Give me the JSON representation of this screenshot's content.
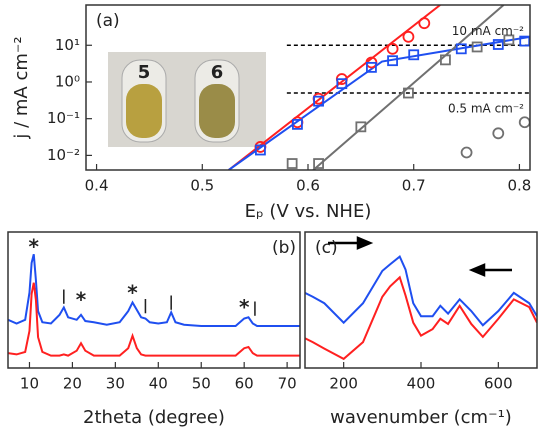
{
  "chart_data": [
    {
      "type": "line",
      "label": "(a)",
      "xlabel": "Eₚ (V vs. NHE)",
      "ylabel": "j / mA cm⁻²",
      "log_y": true,
      "xlim": [
        0.39,
        0.81
      ],
      "ylim": [
        0.004,
        125
      ],
      "xticks": [
        0.4,
        0.5,
        0.6,
        0.7,
        0.8
      ],
      "yticks": [
        {
          "value": 0.01,
          "label": "10⁻²"
        },
        {
          "value": 0.1,
          "label": "10⁻¹"
        },
        {
          "value": 1,
          "label": "10⁰"
        },
        {
          "value": 10,
          "label": "10¹"
        }
      ],
      "hlines": [
        {
          "value": 10,
          "xmin": 0.58,
          "label": "10 mA cm⁻²"
        },
        {
          "value": 0.5,
          "xmin": 0.58,
          "label": "0.5 mA cm⁻²"
        }
      ],
      "inset_labels": [
        "5",
        "6"
      ],
      "series": [
        {
          "color": "#ff2020",
          "line": true,
          "x": [
            0.525,
            0.725
          ],
          "values": [
            0.004,
            125
          ]
        },
        {
          "color": "#1f4ff0",
          "line": true,
          "x": [
            0.525,
            0.67,
            0.81
          ],
          "values": [
            0.004,
            3.6,
            17
          ]
        },
        {
          "color": "#707070",
          "line": true,
          "x": [
            0.605,
            0.785
          ],
          "values": [
            0.004,
            125
          ]
        },
        {
          "color": "#ff2020",
          "marker": "circle",
          "x": [
            0.555,
            0.59,
            0.61,
            0.632,
            0.66,
            0.68,
            0.695,
            0.71
          ],
          "values": [
            0.017,
            0.08,
            0.35,
            1.2,
            3.4,
            8,
            17,
            40
          ]
        },
        {
          "color": "#1f4ff0",
          "marker": "square",
          "x": [
            0.555,
            0.59,
            0.61,
            0.632,
            0.66,
            0.68,
            0.7,
            0.745,
            0.78,
            0.805
          ],
          "values": [
            0.014,
            0.07,
            0.3,
            0.9,
            2.5,
            3.8,
            5.5,
            8,
            10.5,
            13
          ]
        },
        {
          "color": "#707070",
          "marker": "square",
          "x": [
            0.585,
            0.61,
            0.65,
            0.695,
            0.73,
            0.76,
            0.79
          ],
          "values": [
            0.006,
            0.006,
            0.06,
            0.5,
            4,
            9,
            14
          ]
        },
        {
          "color": "#707070",
          "marker": "circle",
          "x": [
            0.75,
            0.78,
            0.805
          ],
          "values": [
            0.012,
            0.04,
            0.08
          ]
        }
      ]
    },
    {
      "type": "line",
      "label": "(b)",
      "xlabel": "2theta (degree)",
      "xlim": [
        5,
        73
      ],
      "ylim": [
        0,
        11
      ],
      "xticks": [
        10,
        20,
        30,
        40,
        50,
        60,
        70
      ],
      "x": [
        5,
        7,
        9,
        10,
        10.5,
        11,
        11.5,
        12,
        13,
        15,
        17,
        18,
        19,
        21,
        22,
        23,
        25,
        28,
        31,
        33,
        34,
        35,
        36,
        37,
        38,
        40,
        42,
        43,
        44,
        46,
        50,
        55,
        58,
        60,
        61,
        62,
        63,
        65,
        70,
        73
      ],
      "series": [
        {
          "color": "#1f4ff0",
          "line": true,
          "values": [
            3.9,
            3.6,
            3.9,
            6.1,
            8.5,
            9.2,
            7.1,
            4.6,
            3.7,
            3.6,
            4.3,
            4.9,
            4.1,
            3.9,
            4.3,
            3.8,
            3.7,
            3.5,
            3.7,
            4.6,
            5.3,
            4.7,
            4.1,
            4,
            3.7,
            3.6,
            3.7,
            4.5,
            3.7,
            3.5,
            3.4,
            3.4,
            3.4,
            4,
            4.1,
            3.6,
            3.4,
            3.4,
            3.4,
            3.4
          ]
        },
        {
          "color": "#ff2020",
          "line": true,
          "values": [
            1.2,
            1.1,
            1.3,
            3,
            6,
            6.9,
            5.5,
            2.5,
            1.3,
            1,
            1,
            1.1,
            1,
            1.4,
            2,
            1.4,
            1,
            1,
            1,
            1.6,
            2.6,
            1.6,
            1.1,
            1,
            1,
            1,
            1,
            1,
            1,
            1,
            1,
            1,
            1,
            1.6,
            1.7,
            1.2,
            1,
            1,
            1,
            1
          ]
        }
      ],
      "annotations": [
        {
          "text": "*",
          "x": 11,
          "y": 9.7
        },
        {
          "text": "*",
          "x": 22,
          "y": 5.4
        },
        {
          "text": "*",
          "x": 34,
          "y": 6
        },
        {
          "text": "*",
          "x": 60,
          "y": 4.8
        },
        {
          "text": "|",
          "x": 18,
          "y": 5.8
        },
        {
          "text": "|",
          "x": 37,
          "y": 5
        },
        {
          "text": "|",
          "x": 43,
          "y": 5.3
        },
        {
          "text": "|",
          "x": 62.5,
          "y": 4.8
        }
      ]
    },
    {
      "type": "line",
      "label": "(c)",
      "xlabel": "wavenumber (cm⁻¹)",
      "xlim": [
        100,
        700
      ],
      "ylim": [
        0,
        10.5
      ],
      "xticks": [
        200,
        400,
        600
      ],
      "x": [
        100,
        120,
        150,
        200,
        250,
        300,
        320,
        345,
        360,
        380,
        400,
        430,
        450,
        470,
        500,
        530,
        560,
        600,
        640,
        680,
        700
      ],
      "series": [
        {
          "color": "#1f4ff0",
          "line": true,
          "values": [
            5.8,
            5.5,
            5,
            3.5,
            5,
            7.5,
            8,
            8.6,
            7.6,
            5,
            4,
            4,
            4.8,
            4.2,
            5.3,
            4.4,
            3.3,
            4.4,
            5.8,
            5,
            4
          ]
        },
        {
          "color": "#ff2020",
          "line": true,
          "values": [
            2.3,
            2,
            1.5,
            0.7,
            2,
            5.5,
            6.3,
            7,
            5.6,
            3.5,
            2.5,
            3,
            3.8,
            3.4,
            4.8,
            3.4,
            2.4,
            3.8,
            5.3,
            4.7,
            3.5
          ]
        }
      ]
    }
  ]
}
